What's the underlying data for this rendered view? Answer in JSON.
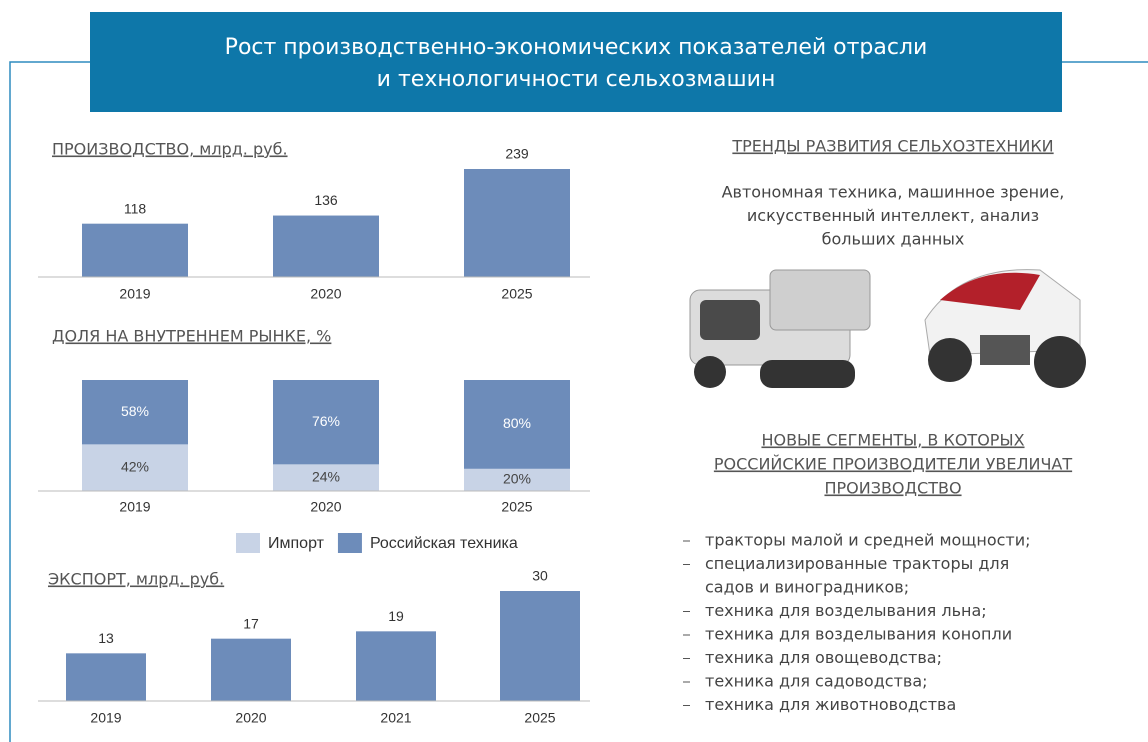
{
  "title_lines": [
    "Рост производственно-экономических показателей отрасли",
    "и технологичности сельхозмашин"
  ],
  "chart_data": [
    {
      "type": "bar",
      "title": "ПРОИЗВОДСТВО, млрд. руб.",
      "categories": [
        "2019",
        "2020",
        "2025"
      ],
      "values": [
        118,
        136,
        239
      ],
      "color": "#6d8cba"
    },
    {
      "type": "stacked_bar",
      "title": "ДОЛЯ НА ВНУТРЕННЕМ РЫНКЕ, %",
      "categories": [
        "2019",
        "2020",
        "2025"
      ],
      "series": [
        {
          "name": "Импорт",
          "color": "#c8d3e6",
          "values": [
            42,
            24,
            20
          ],
          "value_labels": [
            "42%",
            "24%",
            "20%"
          ]
        },
        {
          "name": "Российская техника",
          "color": "#6d8cba",
          "values": [
            58,
            76,
            80
          ],
          "value_labels": [
            "58%",
            "76%",
            "80%"
          ]
        }
      ]
    },
    {
      "type": "bar",
      "title": "ЭКСПОРТ, млрд. руб.",
      "categories": [
        "2019",
        "2020",
        "2021",
        "2025"
      ],
      "values": [
        13,
        17,
        19,
        30
      ],
      "color": "#6d8cba"
    }
  ],
  "trends": {
    "title": "ТРЕНДЫ РАЗВИТИЯ СЕЛЬХОЗТЕХНИКИ",
    "text_lines": [
      "Автономная техника, машинное зрение,",
      "искусственный интеллект, анализ",
      "больших данных"
    ]
  },
  "segments": {
    "title_lines": [
      "НОВЫЕ СЕГМЕНТЫ, В КОТОРЫХ",
      "РОССИЙСКИЕ ПРОИЗВОДИТЕЛИ УВЕЛИЧАТ",
      "ПРОИЗВОДСТВО"
    ],
    "items": [
      [
        "тракторы малой и средней мощности;"
      ],
      [
        "специализированные тракторы для",
        "садов и виноградников;"
      ],
      [
        "техника для возделывания льна;"
      ],
      [
        "техника для возделывания конопли"
      ],
      [
        "техника для овощеводства;"
      ],
      [
        "техника для садоводства;"
      ],
      [
        "техника для животноводства"
      ]
    ]
  }
}
